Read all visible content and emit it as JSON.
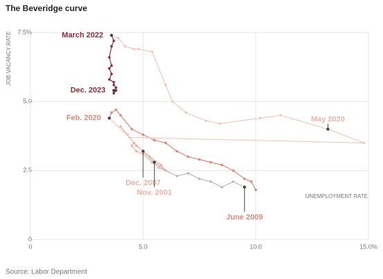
{
  "chart_data": {
    "type": "line",
    "title": "The Beveridge curve",
    "ylabel": "JOB VACANCY RATE",
    "xlabel": "UNEMPLOYMENT RATE",
    "source": "Source: Labor Department",
    "xlim": [
      0,
      15
    ],
    "ylim": [
      0,
      7.5
    ],
    "xticks": [
      0,
      {
        "value": 5,
        "label": "5.0"
      },
      {
        "value": 10,
        "label": "10.0"
      },
      {
        "value": 15,
        "label": "15.0%"
      }
    ],
    "yticks": [
      0,
      2.5,
      {
        "value": 5,
        "label": "5.0"
      },
      {
        "value": 7.5,
        "label": "7.5%"
      }
    ],
    "grid": true,
    "series": [
      {
        "color": "#b9b9b9",
        "x": [
          5.0,
          5.5,
          6.0,
          6.5,
          7.0,
          7.5,
          8.0,
          8.5,
          9.0,
          9.5
        ],
        "values": [
          3.2,
          2.8,
          2.5,
          2.3,
          2.4,
          2.2,
          2.1,
          1.9,
          2.1,
          1.9
        ]
      },
      {
        "color": "#eab3a3",
        "x": [
          4.0,
          4.3,
          4.7,
          5.0,
          5.3,
          5.8,
          6.0,
          5.7,
          5.4,
          5.0,
          4.7,
          4.5,
          4.6,
          5.0
        ],
        "values": [
          4.1,
          3.8,
          3.4,
          3.2,
          3.0,
          2.7,
          2.5,
          2.6,
          2.8,
          3.1,
          3.2,
          3.4,
          3.5,
          3.2
        ]
      },
      {
        "color": "#d98a7c",
        "x": [
          10.0,
          9.8,
          9.5,
          9.0,
          8.5,
          8.0,
          7.5,
          7.0,
          6.5,
          6.0,
          5.5,
          5.0,
          4.5,
          4.0,
          3.8,
          3.6,
          3.5
        ],
        "values": [
          1.8,
          2.1,
          2.2,
          2.5,
          2.7,
          2.8,
          2.9,
          3.0,
          3.2,
          3.5,
          3.6,
          3.8,
          4.0,
          4.5,
          4.7,
          4.6,
          4.4
        ]
      },
      {
        "color": "#f1c9bc",
        "x": [
          3.5,
          4.4,
          14.8,
          13.2,
          11.1,
          10.2,
          8.4,
          7.8,
          6.9,
          6.3,
          6.0,
          5.4,
          4.8,
          4.6,
          4.2,
          3.9,
          3.6
        ],
        "values": [
          4.4,
          3.7,
          3.5,
          4.0,
          4.5,
          4.4,
          4.2,
          4.3,
          4.6,
          5.0,
          5.6,
          6.8,
          6.9,
          6.9,
          7.0,
          7.3,
          7.4
        ]
      },
      {
        "color": "#8b2c3a",
        "x": [
          3.6,
          3.7,
          3.6,
          3.5,
          3.6,
          3.5,
          3.6,
          3.5,
          3.7,
          3.7,
          3.8,
          3.7,
          3.8,
          3.7
        ],
        "values": [
          7.4,
          7.2,
          7.0,
          6.6,
          6.3,
          6.2,
          6.0,
          5.8,
          5.7,
          5.6,
          5.5,
          5.3,
          5.4,
          5.4
        ]
      }
    ],
    "annotations": [
      {
        "text": "March 2022",
        "x": 3.6,
        "y": 7.4,
        "color": "#8b2c3a"
      },
      {
        "text": "Dec. 2023",
        "x": 3.7,
        "y": 5.4,
        "color": "#8b2c3a"
      },
      {
        "text": "Feb. 2020",
        "x": 3.5,
        "y": 4.4,
        "color": "#d98a7c"
      },
      {
        "text": "May 2020",
        "x": 13.2,
        "y": 4.0,
        "color": "#eab3a3"
      },
      {
        "text": "Dec. 2007",
        "x": 5.0,
        "y": 3.2,
        "color": "#eab3a3"
      },
      {
        "text": "Nov. 2001",
        "x": 5.5,
        "y": 2.8,
        "color": "#eab3a3"
      },
      {
        "text": "June 2009",
        "x": 9.5,
        "y": 1.9,
        "color": "#d98a7c"
      }
    ]
  }
}
